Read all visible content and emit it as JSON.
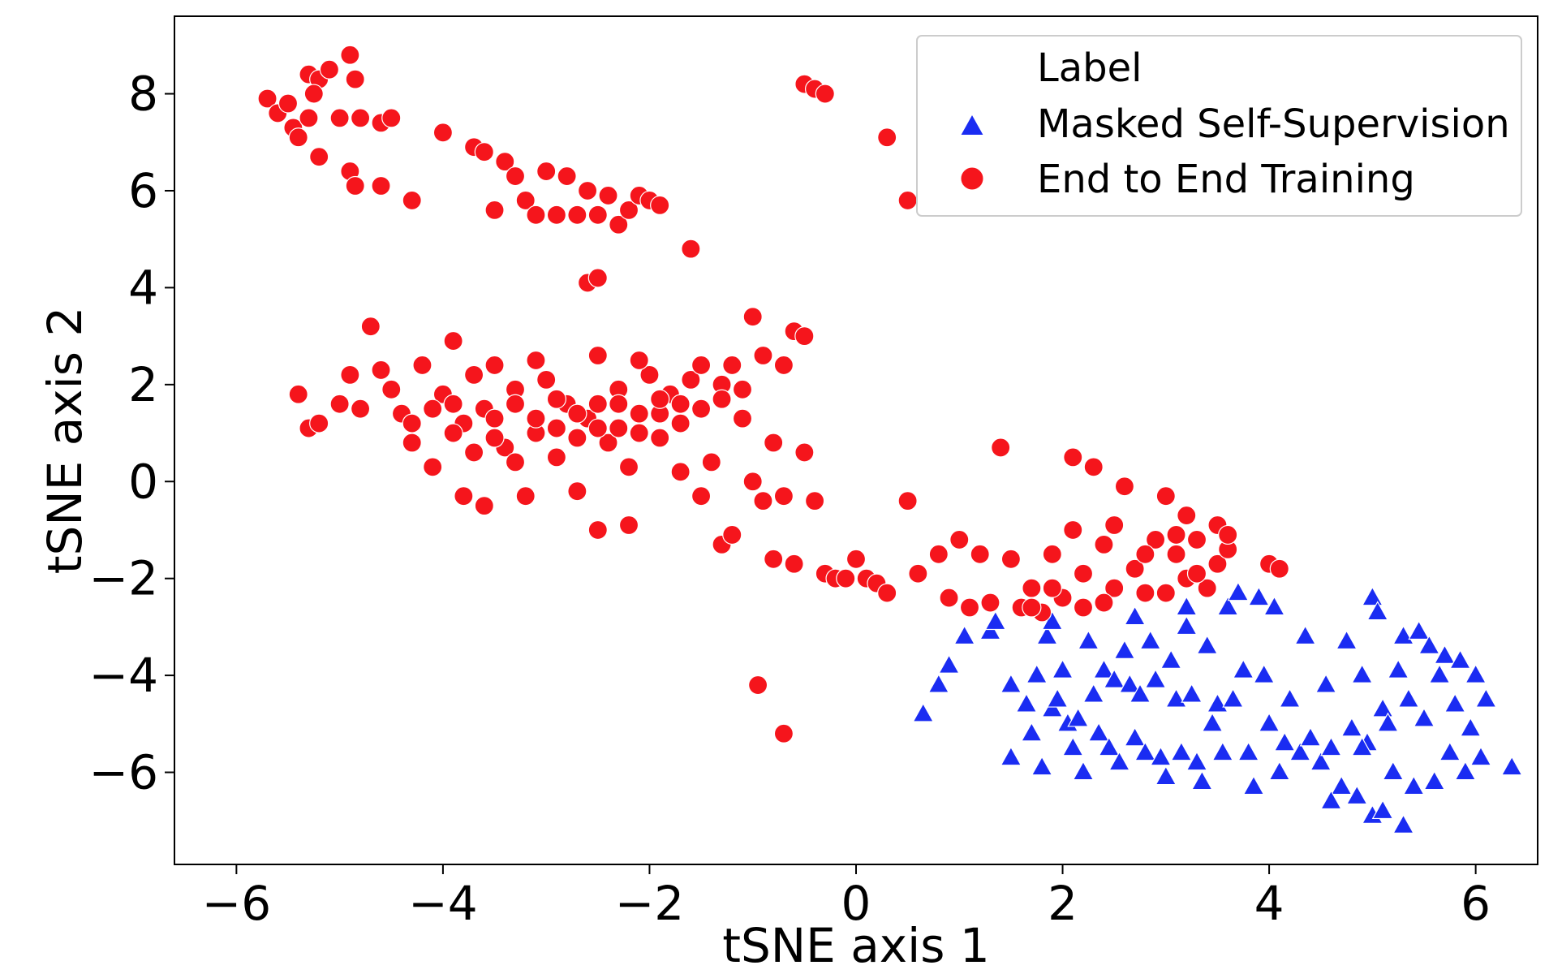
{
  "chart_data": {
    "type": "scatter",
    "xlabel": "tSNE axis 1",
    "ylabel": "tSNE axis 2",
    "xlim": [
      -6.6,
      6.6
    ],
    "ylim": [
      -7.9,
      9.6
    ],
    "xticks": [
      -6,
      -4,
      -2,
      0,
      2,
      4,
      6
    ],
    "yticks": [
      -6,
      -4,
      -2,
      0,
      2,
      4,
      6,
      8
    ],
    "xtick_labels": [
      "−6",
      "−4",
      "−2",
      "0",
      "2",
      "4",
      "6"
    ],
    "ytick_labels": [
      "−6",
      "−4",
      "−2",
      "0",
      "2",
      "4",
      "6",
      "8"
    ],
    "grid": false,
    "legend": {
      "title": "Label",
      "position": "top-right"
    },
    "series": [
      {
        "name": "Masked Self-Supervision",
        "marker": "triangle",
        "color": "#1a2cf2",
        "points": [
          [
            0.65,
            -4.8
          ],
          [
            0.8,
            -4.2
          ],
          [
            0.9,
            -3.8
          ],
          [
            1.05,
            -3.2
          ],
          [
            1.3,
            -3.1
          ],
          [
            1.35,
            -2.9
          ],
          [
            1.5,
            -4.2
          ],
          [
            1.5,
            -5.7
          ],
          [
            1.65,
            -4.6
          ],
          [
            1.7,
            -5.2
          ],
          [
            1.75,
            -4.0
          ],
          [
            1.8,
            -5.9
          ],
          [
            1.85,
            -3.2
          ],
          [
            1.9,
            -4.7
          ],
          [
            1.95,
            -4.5
          ],
          [
            2.0,
            -3.9
          ],
          [
            2.05,
            -5.0
          ],
          [
            2.1,
            -5.5
          ],
          [
            2.15,
            -4.9
          ],
          [
            2.2,
            -6.0
          ],
          [
            2.25,
            -3.3
          ],
          [
            2.3,
            -4.4
          ],
          [
            2.35,
            -5.2
          ],
          [
            2.4,
            -3.9
          ],
          [
            2.45,
            -5.5
          ],
          [
            2.5,
            -4.1
          ],
          [
            2.55,
            -5.8
          ],
          [
            2.6,
            -3.5
          ],
          [
            2.65,
            -4.2
          ],
          [
            2.7,
            -5.3
          ],
          [
            2.75,
            -4.4
          ],
          [
            2.8,
            -5.6
          ],
          [
            2.85,
            -3.3
          ],
          [
            2.9,
            -4.1
          ],
          [
            2.95,
            -5.7
          ],
          [
            3.0,
            -6.1
          ],
          [
            3.05,
            -3.7
          ],
          [
            3.1,
            -4.5
          ],
          [
            3.15,
            -5.6
          ],
          [
            3.2,
            -3.0
          ],
          [
            3.25,
            -4.4
          ],
          [
            3.3,
            -5.8
          ],
          [
            3.35,
            -6.2
          ],
          [
            3.4,
            -3.4
          ],
          [
            3.45,
            -5.0
          ],
          [
            3.5,
            -4.6
          ],
          [
            3.55,
            -5.6
          ],
          [
            3.6,
            -2.6
          ],
          [
            3.65,
            -4.5
          ],
          [
            3.7,
            -2.3
          ],
          [
            3.75,
            -3.9
          ],
          [
            3.8,
            -5.6
          ],
          [
            3.85,
            -6.3
          ],
          [
            3.9,
            -2.4
          ],
          [
            3.95,
            -4.0
          ],
          [
            4.0,
            -5.0
          ],
          [
            4.05,
            -2.6
          ],
          [
            4.1,
            -6.0
          ],
          [
            4.15,
            -5.4
          ],
          [
            4.2,
            -4.5
          ],
          [
            4.3,
            -5.6
          ],
          [
            4.35,
            -3.2
          ],
          [
            4.4,
            -5.3
          ],
          [
            4.5,
            -5.8
          ],
          [
            4.55,
            -4.2
          ],
          [
            4.6,
            -5.5
          ],
          [
            4.7,
            -6.3
          ],
          [
            4.75,
            -3.3
          ],
          [
            4.8,
            -5.1
          ],
          [
            4.85,
            -6.5
          ],
          [
            4.9,
            -4.0
          ],
          [
            4.95,
            -5.4
          ],
          [
            5.0,
            -2.4
          ],
          [
            5.05,
            -2.7
          ],
          [
            5.1,
            -4.7
          ],
          [
            5.15,
            -5.0
          ],
          [
            5.2,
            -6.0
          ],
          [
            5.25,
            -3.9
          ],
          [
            5.3,
            -3.2
          ],
          [
            5.35,
            -4.5
          ],
          [
            5.4,
            -6.3
          ],
          [
            5.45,
            -3.1
          ],
          [
            5.5,
            -4.9
          ],
          [
            5.55,
            -3.4
          ],
          [
            5.6,
            -6.2
          ],
          [
            5.65,
            -4.0
          ],
          [
            5.7,
            -3.6
          ],
          [
            5.75,
            -5.6
          ],
          [
            5.8,
            -4.6
          ],
          [
            5.85,
            -3.7
          ],
          [
            5.9,
            -6.0
          ],
          [
            5.95,
            -5.1
          ],
          [
            6.0,
            -4.0
          ],
          [
            6.05,
            -5.7
          ],
          [
            6.1,
            -4.5
          ],
          [
            6.35,
            -5.9
          ],
          [
            5.0,
            -6.9
          ],
          [
            5.1,
            -6.8
          ],
          [
            5.3,
            -7.1
          ],
          [
            4.9,
            -5.5
          ],
          [
            4.6,
            -6.6
          ],
          [
            3.2,
            -2.6
          ],
          [
            2.7,
            -2.8
          ],
          [
            1.9,
            -2.9
          ]
        ]
      },
      {
        "name": "End to End Training",
        "marker": "circle",
        "color": "#f5151c",
        "points": [
          [
            -5.7,
            7.9
          ],
          [
            -5.6,
            7.6
          ],
          [
            -5.5,
            7.8
          ],
          [
            -5.45,
            7.3
          ],
          [
            -5.4,
            7.1
          ],
          [
            -5.3,
            7.5
          ],
          [
            -5.2,
            6.7
          ],
          [
            -5.3,
            8.4
          ],
          [
            -5.2,
            8.3
          ],
          [
            -5.1,
            8.5
          ],
          [
            -5.25,
            8.0
          ],
          [
            -5.0,
            7.5
          ],
          [
            -4.9,
            8.8
          ],
          [
            -4.85,
            8.3
          ],
          [
            -4.8,
            7.5
          ],
          [
            -4.9,
            6.4
          ],
          [
            -4.85,
            6.1
          ],
          [
            -4.6,
            7.4
          ],
          [
            -4.5,
            7.5
          ],
          [
            -4.6,
            6.1
          ],
          [
            -4.3,
            5.8
          ],
          [
            -4.0,
            7.2
          ],
          [
            -3.7,
            6.9
          ],
          [
            -3.6,
            6.8
          ],
          [
            -3.5,
            5.6
          ],
          [
            -3.4,
            6.6
          ],
          [
            -3.3,
            6.3
          ],
          [
            -3.2,
            5.8
          ],
          [
            -3.1,
            5.5
          ],
          [
            -3.0,
            6.4
          ],
          [
            -2.9,
            5.5
          ],
          [
            -2.8,
            6.3
          ],
          [
            -2.7,
            5.5
          ],
          [
            -2.6,
            6.0
          ],
          [
            -2.5,
            5.5
          ],
          [
            -2.4,
            5.9
          ],
          [
            -2.3,
            5.3
          ],
          [
            -2.2,
            5.6
          ],
          [
            -2.1,
            5.9
          ],
          [
            -2.0,
            5.8
          ],
          [
            -1.9,
            5.7
          ],
          [
            -1.6,
            4.8
          ],
          [
            -2.6,
            4.1
          ],
          [
            -2.5,
            4.2
          ],
          [
            -0.5,
            8.2
          ],
          [
            -0.4,
            8.1
          ],
          [
            -0.3,
            8.0
          ],
          [
            0.3,
            7.1
          ],
          [
            0.5,
            5.8
          ],
          [
            -5.4,
            1.8
          ],
          [
            -5.3,
            1.1
          ],
          [
            -5.2,
            1.2
          ],
          [
            -5.0,
            1.6
          ],
          [
            -4.9,
            2.2
          ],
          [
            -4.8,
            1.5
          ],
          [
            -4.7,
            3.2
          ],
          [
            -4.6,
            2.3
          ],
          [
            -4.5,
            1.9
          ],
          [
            -4.4,
            1.4
          ],
          [
            -4.3,
            0.8
          ],
          [
            -4.2,
            2.4
          ],
          [
            -4.1,
            0.3
          ],
          [
            -4.0,
            1.8
          ],
          [
            -3.9,
            2.9
          ],
          [
            -3.8,
            1.2
          ],
          [
            -3.7,
            0.6
          ],
          [
            -3.6,
            1.5
          ],
          [
            -3.5,
            2.4
          ],
          [
            -3.4,
            0.7
          ],
          [
            -3.3,
            1.9
          ],
          [
            -3.2,
            -0.3
          ],
          [
            -3.1,
            1.0
          ],
          [
            -3.0,
            2.1
          ],
          [
            -2.9,
            0.5
          ],
          [
            -2.8,
            1.6
          ],
          [
            -2.7,
            -0.2
          ],
          [
            -2.6,
            1.3
          ],
          [
            -2.5,
            2.6
          ],
          [
            -2.4,
            0.8
          ],
          [
            -2.3,
            1.9
          ],
          [
            -2.2,
            0.3
          ],
          [
            -2.1,
            1.4
          ],
          [
            -2.0,
            2.2
          ],
          [
            -1.9,
            0.9
          ],
          [
            -1.8,
            1.8
          ],
          [
            -1.7,
            0.2
          ],
          [
            -1.6,
            2.1
          ],
          [
            -1.5,
            1.5
          ],
          [
            -1.4,
            0.4
          ],
          [
            -1.3,
            2.0
          ],
          [
            -1.2,
            2.4
          ],
          [
            -1.1,
            1.3
          ],
          [
            -1.0,
            3.4
          ],
          [
            -0.9,
            2.6
          ],
          [
            -0.8,
            0.8
          ],
          [
            -0.7,
            2.4
          ],
          [
            -0.6,
            3.1
          ],
          [
            -0.5,
            0.6
          ],
          [
            -0.5,
            3.0
          ],
          [
            -3.8,
            -0.3
          ],
          [
            -3.6,
            -0.5
          ],
          [
            -3.9,
            1.6
          ],
          [
            -3.7,
            2.2
          ],
          [
            -3.5,
            0.9
          ],
          [
            -3.3,
            0.4
          ],
          [
            -3.1,
            2.5
          ],
          [
            -2.9,
            1.1
          ],
          [
            -2.7,
            0.9
          ],
          [
            -2.5,
            1.6
          ],
          [
            -2.3,
            1.1
          ],
          [
            -2.1,
            2.5
          ],
          [
            -1.9,
            1.4
          ],
          [
            -1.7,
            1.2
          ],
          [
            -4.3,
            1.2
          ],
          [
            -4.1,
            1.5
          ],
          [
            -3.9,
            1.0
          ],
          [
            -3.5,
            1.3
          ],
          [
            -3.3,
            1.6
          ],
          [
            -3.1,
            1.3
          ],
          [
            -2.9,
            1.7
          ],
          [
            -2.7,
            1.4
          ],
          [
            -2.5,
            1.1
          ],
          [
            -2.3,
            1.6
          ],
          [
            -2.1,
            1.0
          ],
          [
            -1.9,
            1.7
          ],
          [
            -1.7,
            1.6
          ],
          [
            -1.5,
            2.4
          ],
          [
            -1.3,
            1.7
          ],
          [
            -1.1,
            1.9
          ],
          [
            -2.5,
            -1.0
          ],
          [
            -2.2,
            -0.9
          ],
          [
            -1.5,
            -0.3
          ],
          [
            -1.3,
            -1.3
          ],
          [
            -1.2,
            -1.1
          ],
          [
            -1.0,
            0.0
          ],
          [
            -0.9,
            -0.4
          ],
          [
            -0.8,
            -1.6
          ],
          [
            -0.7,
            -0.3
          ],
          [
            -0.6,
            -1.7
          ],
          [
            -0.4,
            -0.4
          ],
          [
            -0.3,
            -1.9
          ],
          [
            -0.2,
            -2.0
          ],
          [
            -0.1,
            -2.0
          ],
          [
            0.0,
            -1.6
          ],
          [
            0.1,
            -2.0
          ],
          [
            0.2,
            -2.1
          ],
          [
            0.3,
            -2.3
          ],
          [
            0.5,
            -0.4
          ],
          [
            0.6,
            -1.9
          ],
          [
            0.8,
            -1.5
          ],
          [
            0.9,
            -2.4
          ],
          [
            1.0,
            -1.2
          ],
          [
            1.1,
            -2.6
          ],
          [
            1.2,
            -1.5
          ],
          [
            1.3,
            -2.5
          ],
          [
            1.4,
            0.7
          ],
          [
            1.5,
            -1.6
          ],
          [
            1.6,
            -2.6
          ],
          [
            1.7,
            -2.2
          ],
          [
            1.8,
            -2.7
          ],
          [
            1.9,
            -1.5
          ],
          [
            2.0,
            -2.4
          ],
          [
            2.1,
            0.5
          ],
          [
            2.1,
            -1.0
          ],
          [
            2.2,
            -2.6
          ],
          [
            2.3,
            0.3
          ],
          [
            2.4,
            -1.3
          ],
          [
            2.5,
            -2.2
          ],
          [
            2.5,
            -0.9
          ],
          [
            2.6,
            -0.1
          ],
          [
            2.7,
            -1.8
          ],
          [
            2.8,
            -2.3
          ],
          [
            2.9,
            -1.2
          ],
          [
            3.0,
            -0.3
          ],
          [
            3.0,
            -2.3
          ],
          [
            3.1,
            -1.5
          ],
          [
            3.2,
            -0.7
          ],
          [
            3.2,
            -2.0
          ],
          [
            3.3,
            -1.2
          ],
          [
            3.4,
            -2.2
          ],
          [
            3.5,
            -0.9
          ],
          [
            3.5,
            -1.7
          ],
          [
            3.6,
            -1.4
          ],
          [
            3.6,
            -1.1
          ],
          [
            4.0,
            -1.7
          ],
          [
            4.1,
            -1.8
          ],
          [
            2.2,
            -1.9
          ],
          [
            2.4,
            -2.5
          ],
          [
            1.9,
            -2.2
          ],
          [
            1.7,
            -2.6
          ],
          [
            2.8,
            -1.5
          ],
          [
            3.3,
            -1.9
          ],
          [
            3.1,
            -1.1
          ],
          [
            -0.95,
            -4.2
          ],
          [
            -0.7,
            -5.2
          ]
        ]
      }
    ]
  }
}
